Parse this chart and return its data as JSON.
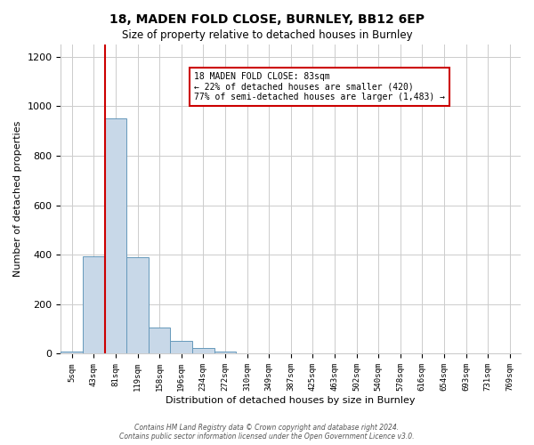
{
  "title": "18, MADEN FOLD CLOSE, BURNLEY, BB12 6EP",
  "subtitle": "Size of property relative to detached houses in Burnley",
  "xlabel": "Distribution of detached houses by size in Burnley",
  "ylabel": "Number of detached properties",
  "bin_labels": [
    "5sqm",
    "43sqm",
    "81sqm",
    "119sqm",
    "158sqm",
    "196sqm",
    "234sqm",
    "272sqm",
    "310sqm",
    "349sqm",
    "387sqm",
    "425sqm",
    "463sqm",
    "502sqm",
    "540sqm",
    "578sqm",
    "616sqm",
    "654sqm",
    "693sqm",
    "731sqm",
    "769sqm"
  ],
  "bar_heights": [
    10,
    395,
    950,
    390,
    105,
    52,
    22,
    8,
    0,
    0,
    0,
    0,
    0,
    0,
    0,
    0,
    0,
    0,
    0,
    0,
    0
  ],
  "bar_color": "#c8d8e8",
  "bar_edge_color": "#6699bb",
  "property_line_index": 2,
  "property_line_color": "#cc0000",
  "annotation_line1": "18 MADEN FOLD CLOSE: 83sqm",
  "annotation_line2": "← 22% of detached houses are smaller (420)",
  "annotation_line3": "77% of semi-detached houses are larger (1,483) →",
  "annotation_box_color": "#ffffff",
  "annotation_box_edge_color": "#cc0000",
  "ylim": [
    0,
    1250
  ],
  "yticks": [
    0,
    200,
    400,
    600,
    800,
    1000,
    1200
  ],
  "footer_text": "Contains HM Land Registry data © Crown copyright and database right 2024.\nContains public sector information licensed under the Open Government Licence v3.0.",
  "background_color": "#ffffff",
  "grid_color": "#cccccc"
}
